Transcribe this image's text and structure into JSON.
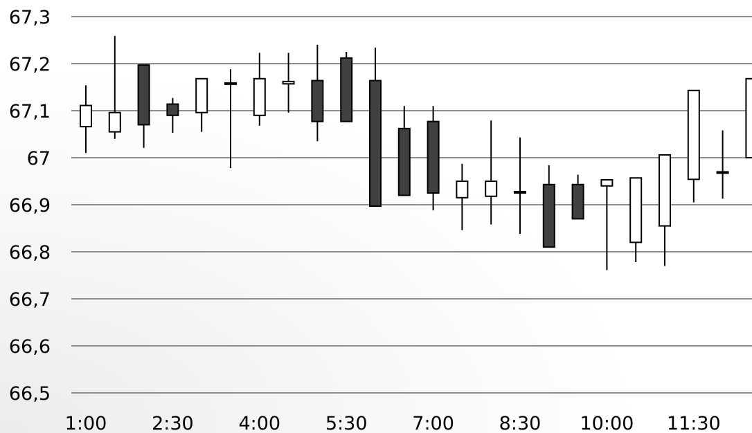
{
  "chart_data": {
    "type": "candlestick",
    "y_tick_labels": [
      "67,3",
      "67,2",
      "67,1",
      "67",
      "66,9",
      "66,8",
      "66,7",
      "66,6",
      "66,5"
    ],
    "x_tick_labels": [
      "1:00",
      "2:30",
      "4:00",
      "5:30",
      "7:00",
      "8:30",
      "10:00",
      "11:30"
    ],
    "ylim": [
      66.5,
      67.3
    ],
    "grid": true,
    "legend": "none",
    "colors": {
      "up": "#ffffff",
      "down": "#404040",
      "outline": "#000000",
      "grid": "#8c8c8c"
    },
    "candles": [
      {
        "x": "1:00",
        "open": 67.066,
        "high": 67.154,
        "low": 67.01,
        "close": 67.111
      },
      {
        "x": "1:30",
        "open": 67.055,
        "high": 67.259,
        "low": 67.04,
        "close": 67.096
      },
      {
        "x": "2:00",
        "open": 67.197,
        "high": 67.197,
        "low": 67.021,
        "close": 67.07
      },
      {
        "x": "2:30",
        "open": 67.114,
        "high": 67.127,
        "low": 67.053,
        "close": 67.09
      },
      {
        "x": "3:00",
        "open": 67.096,
        "high": 67.168,
        "low": 67.055,
        "close": 67.168
      },
      {
        "x": "3:30",
        "open": 67.159,
        "high": 67.188,
        "low": 66.978,
        "close": 67.159
      },
      {
        "x": "4:00",
        "open": 67.09,
        "high": 67.223,
        "low": 67.068,
        "close": 67.168
      },
      {
        "x": "4:30",
        "open": 67.157,
        "high": 67.223,
        "low": 67.096,
        "close": 67.162
      },
      {
        "x": "5:00",
        "open": 67.164,
        "high": 67.24,
        "low": 67.035,
        "close": 67.077
      },
      {
        "x": "5:30",
        "open": 67.212,
        "high": 67.225,
        "low": 67.077,
        "close": 67.077
      },
      {
        "x": "6:00",
        "open": 67.164,
        "high": 67.234,
        "low": 66.897,
        "close": 66.897
      },
      {
        "x": "6:30",
        "open": 67.062,
        "high": 67.11,
        "low": 66.92,
        "close": 66.92
      },
      {
        "x": "7:00",
        "open": 67.077,
        "high": 67.11,
        "low": 66.888,
        "close": 66.925
      },
      {
        "x": "7:30",
        "open": 66.915,
        "high": 66.987,
        "low": 66.846,
        "close": 66.95
      },
      {
        "x": "8:00",
        "open": 66.918,
        "high": 67.079,
        "low": 66.858,
        "close": 66.95
      },
      {
        "x": "8:30",
        "open": 66.928,
        "high": 67.043,
        "low": 66.838,
        "close": 66.928
      },
      {
        "x": "9:00",
        "open": 66.943,
        "high": 66.984,
        "low": 66.81,
        "close": 66.81
      },
      {
        "x": "9:30",
        "open": 66.943,
        "high": 66.964,
        "low": 66.87,
        "close": 66.87
      },
      {
        "x": "10:00",
        "open": 66.94,
        "high": 66.953,
        "low": 66.761,
        "close": 66.953
      },
      {
        "x": "10:30",
        "open": 66.82,
        "high": 66.957,
        "low": 66.778,
        "close": 66.957
      },
      {
        "x": "11:00",
        "open": 66.855,
        "high": 67.006,
        "low": 66.77,
        "close": 67.006
      },
      {
        "x": "11:30",
        "open": 66.954,
        "high": 67.143,
        "low": 66.905,
        "close": 67.143
      },
      {
        "x": "12:00",
        "open": 66.97,
        "high": 67.058,
        "low": 66.913,
        "close": 66.97
      },
      {
        "x": "12:30",
        "open": 67.0,
        "high": 67.168,
        "low": 67.0,
        "close": 67.168
      }
    ]
  }
}
